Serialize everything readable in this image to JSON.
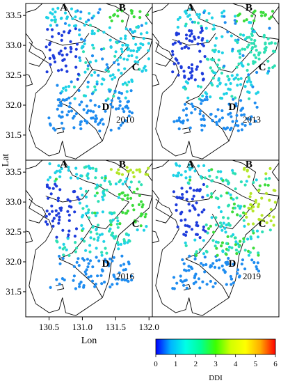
{
  "axes": {
    "xlabel": "Lon",
    "ylabel": "Lat",
    "x_ticks": [
      "130.5",
      "131.0",
      "131.5",
      "132.0"
    ],
    "y_ticks": [
      "31.5",
      "32.0",
      "32.5",
      "33.0",
      "33.5"
    ],
    "lon_range": [
      130.15,
      132.05
    ],
    "lat_range": [
      31.08,
      33.7
    ]
  },
  "panels": [
    {
      "year": "2010",
      "position": "top-left"
    },
    {
      "year": "2013",
      "position": "top-right"
    },
    {
      "year": "2016",
      "position": "bottom-left"
    },
    {
      "year": "2019",
      "position": "bottom-right"
    }
  ],
  "region_labels": [
    {
      "text": "A",
      "lon": 130.72,
      "lat": 33.58
    },
    {
      "text": "B",
      "lon": 131.6,
      "lat": 33.58
    },
    {
      "text": "C",
      "lon": 131.8,
      "lat": 32.58
    },
    {
      "text": "D",
      "lon": 131.35,
      "lat": 31.92
    }
  ],
  "colorbar": {
    "label": "DDI",
    "min": 0,
    "max": 6,
    "ticks": [
      "0",
      "1",
      "2",
      "3",
      "4",
      "5",
      "6"
    ],
    "colors": [
      "#0000ff",
      "#00b4ff",
      "#00ffe6",
      "#00ff96",
      "#3cff00",
      "#d2ff00",
      "#ffff00",
      "#ffaa00",
      "#ff0000"
    ]
  },
  "station_colors": {
    "low": "#1e3cdc",
    "mid": "#1e8cf0",
    "cyan": "#1ed2e6",
    "teal": "#2de0b4",
    "green": "#3cdc3c",
    "yellow_green": "#b4e628"
  }
}
